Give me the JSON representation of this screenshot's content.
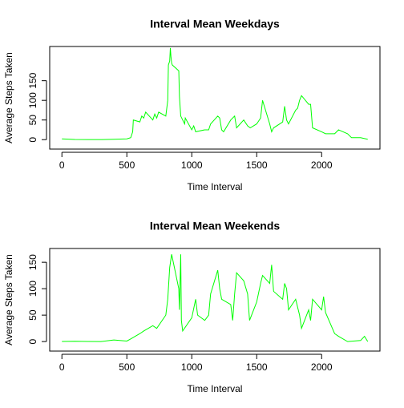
{
  "chart_data": [
    {
      "type": "line",
      "title": "Interval Mean Weekdays",
      "xlabel": "Time Interval",
      "ylabel": "Average Steps Taken",
      "color": "#00ff00",
      "x": [
        0,
        100,
        200,
        300,
        400,
        500,
        530,
        545,
        550,
        600,
        615,
        630,
        645,
        700,
        715,
        730,
        745,
        800,
        815,
        820,
        830,
        835,
        840,
        845,
        850,
        900,
        905,
        915,
        930,
        945,
        950,
        1000,
        1015,
        1030,
        1100,
        1130,
        1145,
        1200,
        1215,
        1230,
        1245,
        1300,
        1330,
        1345,
        1400,
        1430,
        1450,
        1500,
        1530,
        1545,
        1600,
        1615,
        1630,
        1700,
        1715,
        1730,
        1745,
        1800,
        1815,
        1830,
        1845,
        1900,
        1915,
        1930,
        2000,
        2030,
        2100,
        2130,
        2200,
        2230,
        2300,
        2355
      ],
      "values": [
        2,
        0.5,
        0.3,
        0.2,
        1,
        2,
        5,
        20,
        50,
        45,
        60,
        55,
        70,
        50,
        65,
        55,
        70,
        60,
        100,
        190,
        200,
        233,
        210,
        195,
        190,
        175,
        110,
        60,
        50,
        40,
        55,
        25,
        35,
        20,
        25,
        25,
        40,
        60,
        55,
        25,
        20,
        50,
        60,
        30,
        50,
        35,
        30,
        40,
        55,
        100,
        40,
        20,
        30,
        45,
        85,
        50,
        40,
        75,
        80,
        100,
        112,
        90,
        90,
        30,
        20,
        15,
        15,
        25,
        15,
        5,
        5,
        1
      ],
      "xlim": [
        -94,
        2449
      ],
      "ylim": [
        -24,
        237
      ],
      "xticks": [
        0,
        500,
        1000,
        1500,
        2000
      ],
      "yticks": [
        0,
        50,
        100,
        150
      ]
    },
    {
      "type": "line",
      "title": "Interval Mean Weekends",
      "xlabel": "Time Interval",
      "ylabel": "Average Steps Taken",
      "color": "#00ff00",
      "x": [
        0,
        100,
        200,
        300,
        400,
        500,
        530,
        600,
        630,
        700,
        730,
        800,
        815,
        830,
        845,
        900,
        905,
        915,
        920,
        930,
        1000,
        1030,
        1045,
        1100,
        1130,
        1145,
        1200,
        1215,
        1230,
        1300,
        1315,
        1330,
        1345,
        1400,
        1430,
        1445,
        1500,
        1530,
        1545,
        1600,
        1615,
        1630,
        1700,
        1715,
        1730,
        1745,
        1800,
        1830,
        1845,
        1900,
        1915,
        1930,
        2000,
        2015,
        2030,
        2100,
        2130,
        2200,
        2300,
        2330,
        2355
      ],
      "values": [
        0.2,
        0.5,
        0.2,
        0,
        3,
        1,
        5,
        15,
        20,
        30,
        25,
        50,
        80,
        140,
        165,
        100,
        60,
        165,
        40,
        20,
        45,
        80,
        50,
        40,
        50,
        90,
        135,
        100,
        80,
        70,
        40,
        90,
        130,
        115,
        90,
        40,
        75,
        110,
        125,
        110,
        145,
        95,
        80,
        110,
        100,
        60,
        80,
        50,
        25,
        60,
        40,
        80,
        60,
        85,
        55,
        15,
        10,
        0,
        2,
        10,
        0
      ],
      "xlim": [
        -94,
        2449
      ],
      "ylim": [
        -18,
        176
      ],
      "xticks": [
        0,
        500,
        1000,
        1500,
        2000
      ],
      "yticks": [
        0,
        50,
        100,
        150
      ]
    }
  ]
}
